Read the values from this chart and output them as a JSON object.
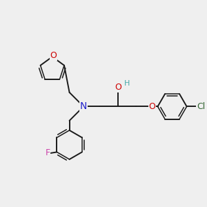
{
  "bg_color": "#efefef",
  "bond_color": "#1a1a1a",
  "N_color": "#2222cc",
  "O_color": "#cc0000",
  "F_color": "#cc44aa",
  "Cl_color": "#336633",
  "H_color": "#4aabab",
  "figsize": [
    3.0,
    3.0
  ],
  "dpi": 100,
  "xlim": [
    0,
    10
  ],
  "ylim": [
    0,
    10
  ]
}
